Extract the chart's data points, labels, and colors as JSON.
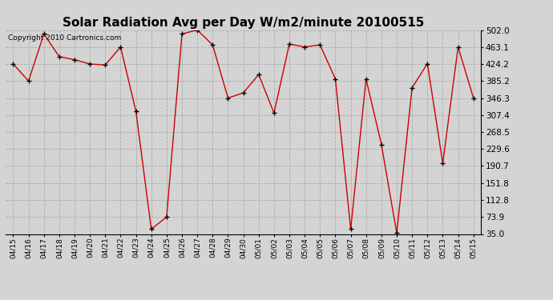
{
  "title": "Solar Radiation Avg per Day W/m2/minute 20100515",
  "copyright": "Copyright 2010 Cartronics.com",
  "dates": [
    "04/15",
    "04/16",
    "04/17",
    "04/18",
    "04/19",
    "04/20",
    "04/21",
    "04/22",
    "04/23",
    "04/24",
    "04/25",
    "04/26",
    "04/27",
    "04/28",
    "04/29",
    "04/30",
    "05/01",
    "05/02",
    "05/03",
    "05/04",
    "05/05",
    "05/06",
    "05/07",
    "05/08",
    "05/09",
    "05/10",
    "05/11",
    "05/12",
    "05/13",
    "05/14",
    "05/15"
  ],
  "values": [
    424.2,
    385.2,
    493.0,
    441.0,
    434.0,
    424.2,
    422.0,
    463.1,
    316.0,
    46.0,
    73.9,
    493.0,
    502.0,
    468.0,
    346.3,
    358.0,
    400.0,
    312.0,
    470.0,
    463.1,
    468.0,
    390.0,
    46.0,
    390.0,
    240.0,
    37.0,
    370.0,
    425.0,
    197.0,
    463.1,
    346.3
  ],
  "yticks": [
    35.0,
    73.9,
    112.8,
    151.8,
    190.7,
    229.6,
    268.5,
    307.4,
    346.3,
    385.2,
    424.2,
    463.1,
    502.0
  ],
  "ymin": 35.0,
  "ymax": 502.0,
  "line_color": "#cc0000",
  "marker_color": "#000000",
  "bg_color": "#d4d4d4",
  "grid_color": "#aaaaaa",
  "title_fontsize": 11,
  "copyright_fontsize": 6.5,
  "tick_fontsize": 6.5,
  "ytick_fontsize": 7.5
}
